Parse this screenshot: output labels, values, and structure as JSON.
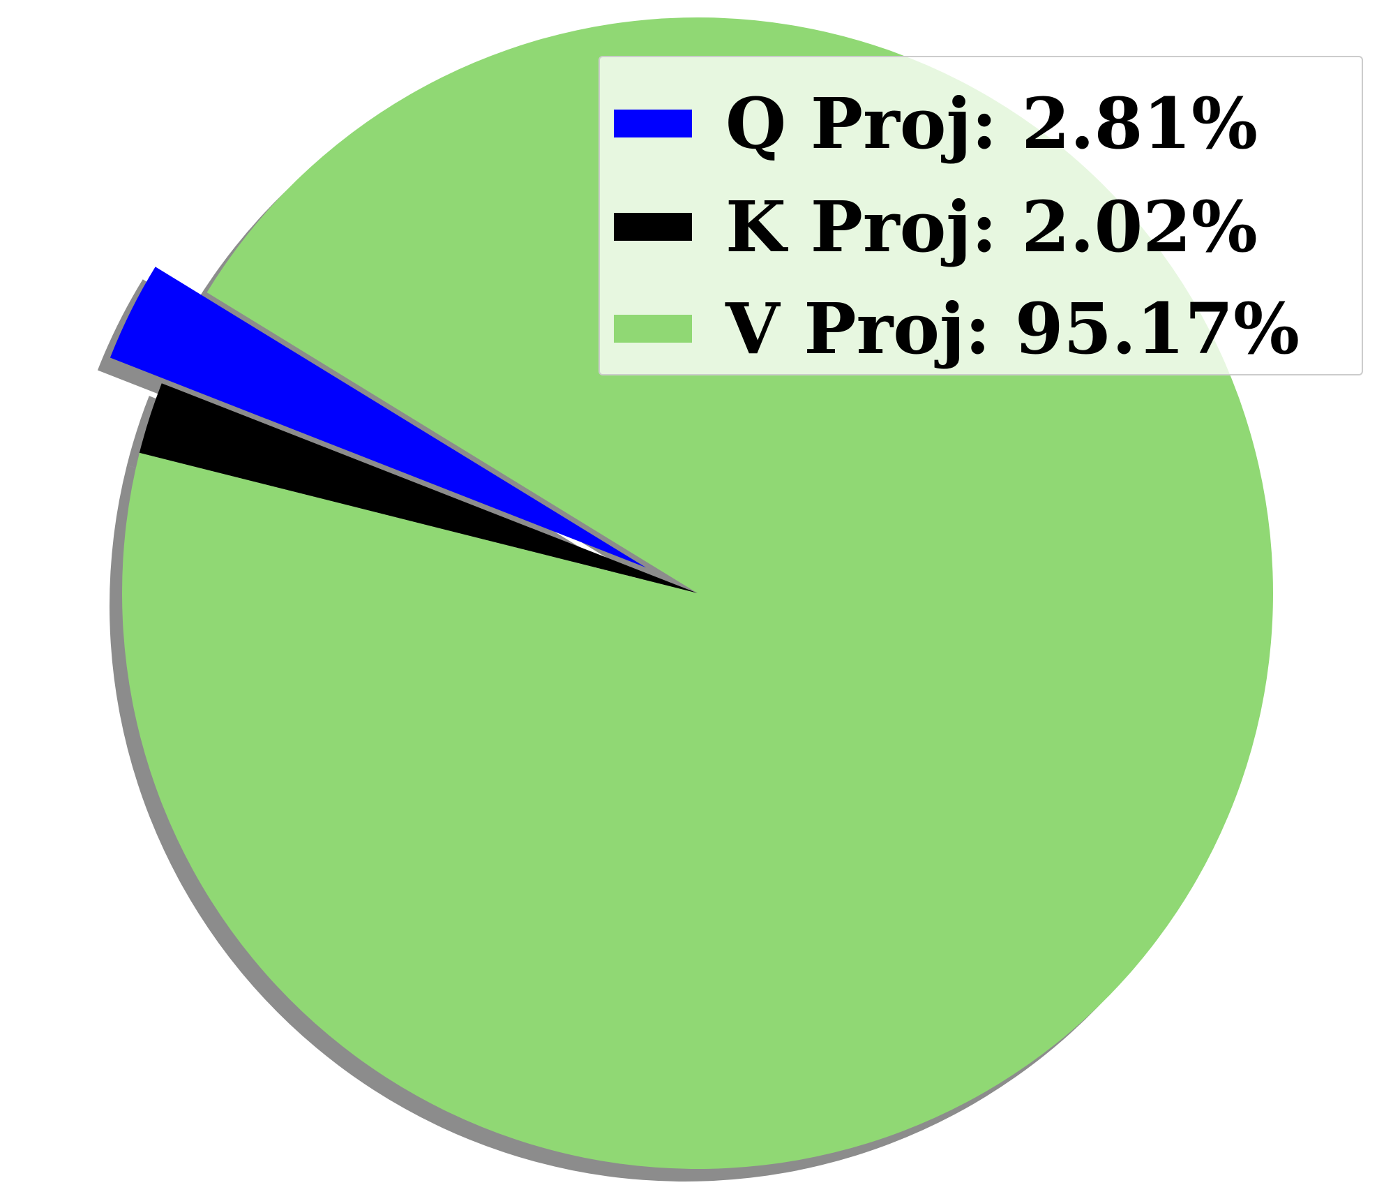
{
  "chart_data": {
    "type": "pie",
    "title": "",
    "slices": [
      {
        "label": "Q Proj: 2.81%",
        "value": 2.81,
        "color": "#0000ff",
        "exploded": true
      },
      {
        "label": "K Proj: 2.02%",
        "value": 2.02,
        "color": "#000000",
        "exploded": false
      },
      {
        "label": "V Proj: 95.17%",
        "value": 95.17,
        "color": "#90d874",
        "exploded": false
      }
    ],
    "shadow": true,
    "legend_position": "top-right"
  }
}
